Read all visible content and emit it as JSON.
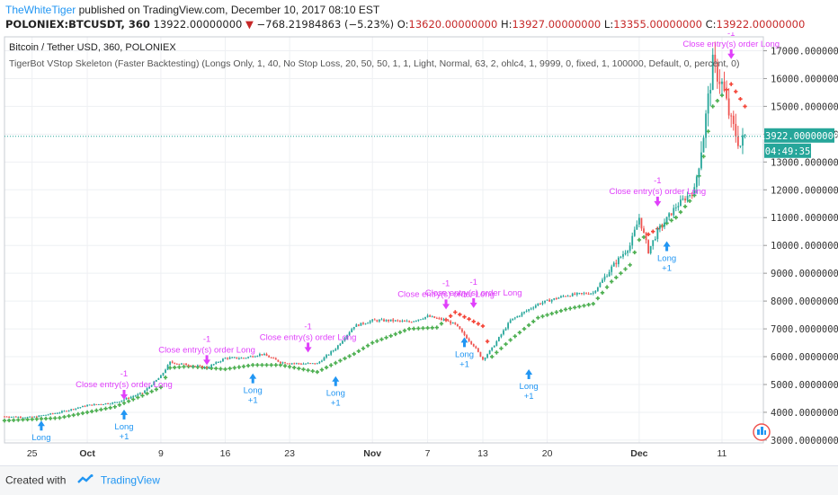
{
  "header": {
    "author": "TheWhiteTiger",
    "published_text": "published on TradingView.com, December 10, 2017 08:10 EST",
    "symbol": "POLONIEX:BTCUSDT, 360",
    "last": "13922.00000000",
    "change_arrow": "▼",
    "change": "−768.21984863 (−5.23%)",
    "o_label": "O:",
    "o_val": "13620.00000000",
    "h_label": "H:",
    "h_val": "13927.00000000",
    "l_label": "L:",
    "l_val": "13355.00000000",
    "c_label": "C:",
    "c_val": "13922.00000000"
  },
  "legend": {
    "title": "Bitcoin / Tether USD, 360, POLONIEX",
    "study": "TigerBot VStop Skeleton (Faster Backtesting) (Longs Only, 1, 40, No Stop Loss, 20, 50, 50, 1, 1, Light, Normal, 63, 2, ohlc4, 1, 9999, 0, fixed, 1, 100000, Default, 0, percent, 0)"
  },
  "price_label": "13922.00000000",
  "time_label": "04:49:35",
  "footer": {
    "created": "Created with",
    "brand": "TradingView"
  },
  "icons": [
    "tradingview-logo-icon",
    "scale-badge-icon"
  ],
  "colors": {
    "bull": "#26a69a",
    "bear": "#ef5350",
    "stop_long": "#4caf50",
    "stop_short": "#f44336",
    "entry": "#2196f3",
    "exit": "#e040fb",
    "last_price": "#26a69a"
  },
  "chart_data": {
    "type": "candlestick",
    "ylim": [
      2900,
      17500
    ],
    "y_ticks": [
      "3000.00000000",
      "4000.00000000",
      "5000.00000000",
      "6000.00000000",
      "7000.00000000",
      "8000.00000000",
      "9000.00000000",
      "10000.00000000",
      "11000.00000000",
      "12000.00000000",
      "13000.00000000",
      "14000.00000000",
      "15000.00000000",
      "16000.00000000",
      "17000.00000000"
    ],
    "y_tick_values": [
      3000,
      4000,
      5000,
      6000,
      7000,
      8000,
      9000,
      10000,
      11000,
      12000,
      13000,
      14000,
      15000,
      16000,
      17000
    ],
    "x_ticks": [
      "25",
      "Oct",
      "9",
      "16",
      "23",
      "Nov",
      "7",
      "13",
      "20",
      "Dec",
      "11"
    ],
    "x_tick_days": [
      0,
      6,
      14,
      21,
      28,
      37,
      43,
      49,
      56,
      66,
      75
    ],
    "x_range_days": [
      -3,
      76
    ],
    "price_path": [
      [
        -3,
        3850
      ],
      [
        0,
        3820
      ],
      [
        3,
        4000
      ],
      [
        6,
        4250
      ],
      [
        9,
        4350
      ],
      [
        12,
        4700
      ],
      [
        14,
        5300
      ],
      [
        15,
        5800
      ],
      [
        17,
        5700
      ],
      [
        19,
        5600
      ],
      [
        21,
        5950
      ],
      [
        23,
        5950
      ],
      [
        25,
        6100
      ],
      [
        27,
        5800
      ],
      [
        29,
        5750
      ],
      [
        31,
        5750
      ],
      [
        33,
        6300
      ],
      [
        35,
        7100
      ],
      [
        37,
        7300
      ],
      [
        39,
        7300
      ],
      [
        41,
        7250
      ],
      [
        43,
        7450
      ],
      [
        45,
        7300
      ],
      [
        46,
        7150
      ],
      [
        48,
        6400
      ],
      [
        49,
        5900
      ],
      [
        50,
        6300
      ],
      [
        52,
        7300
      ],
      [
        55,
        7900
      ],
      [
        58,
        8200
      ],
      [
        61,
        8300
      ],
      [
        63,
        9200
      ],
      [
        65,
        10000
      ],
      [
        66,
        11000
      ],
      [
        67,
        9800
      ],
      [
        68,
        10500
      ],
      [
        70,
        11400
      ],
      [
        72,
        12000
      ],
      [
        73,
        14000
      ],
      [
        74,
        16500
      ],
      [
        75,
        15800
      ],
      [
        76,
        14400
      ],
      [
        77,
        13600
      ],
      [
        77.5,
        13922
      ]
    ],
    "stop_path": [
      [
        -3,
        3700
      ],
      [
        3,
        3800
      ],
      [
        9,
        4200
      ],
      [
        12,
        4600
      ],
      [
        14,
        4900
      ],
      [
        15,
        5600
      ],
      [
        17,
        5650
      ],
      [
        21,
        5550
      ],
      [
        24,
        5700
      ],
      [
        27,
        5700
      ],
      [
        31,
        5450
      ],
      [
        35,
        6100
      ],
      [
        37,
        6500
      ],
      [
        41,
        7000
      ],
      [
        44,
        7050
      ],
      [
        46,
        7600
      ],
      [
        49,
        7100
      ],
      [
        50,
        6000
      ],
      [
        52,
        6600
      ],
      [
        55,
        7400
      ],
      [
        58,
        7700
      ],
      [
        61,
        7900
      ],
      [
        63,
        8700
      ],
      [
        65,
        9300
      ],
      [
        66,
        10200
      ],
      [
        67,
        10400
      ],
      [
        70,
        11000
      ],
      [
        72,
        11800
      ],
      [
        73,
        13200
      ],
      [
        74,
        15000
      ],
      [
        76,
        15800
      ],
      [
        77.5,
        15000
      ]
    ],
    "entries": [
      {
        "day": 1,
        "price": 3700,
        "label": "Long",
        "qty": ""
      },
      {
        "day": 10,
        "price": 4100,
        "label": "Long",
        "qty": "+1"
      },
      {
        "day": 24,
        "price": 5400,
        "label": "Long",
        "qty": "+1"
      },
      {
        "day": 33,
        "price": 5300,
        "label": "Long",
        "qty": "+1"
      },
      {
        "day": 47,
        "price": 6700,
        "label": "Long",
        "qty": "+1"
      },
      {
        "day": 54,
        "price": 5550,
        "label": "Long",
        "qty": "+1"
      },
      {
        "day": 69,
        "price": 10150,
        "label": "Long",
        "qty": "+1"
      }
    ],
    "exits": [
      {
        "day": 10,
        "price": 4450,
        "label": "Close entry(s) order Long",
        "qty": "-1"
      },
      {
        "day": 19,
        "price": 5700,
        "label": "Close entry(s) order Long",
        "qty": "-1"
      },
      {
        "day": 30,
        "price": 6150,
        "label": "Close entry(s) order Long",
        "qty": "-1"
      },
      {
        "day": 45,
        "price": 7700,
        "label": "Close entry(s) order Long",
        "qty": "-1"
      },
      {
        "day": 48,
        "price": 7750,
        "label": "Close entry(s) order Long",
        "qty": "-1"
      },
      {
        "day": 68,
        "price": 11400,
        "label": "Close entry(s) order Long",
        "qty": "-1"
      },
      {
        "day": 76,
        "price": 16700,
        "label": "Close entry(s) order Long",
        "qty": "-1"
      }
    ],
    "last_price": 13922
  }
}
